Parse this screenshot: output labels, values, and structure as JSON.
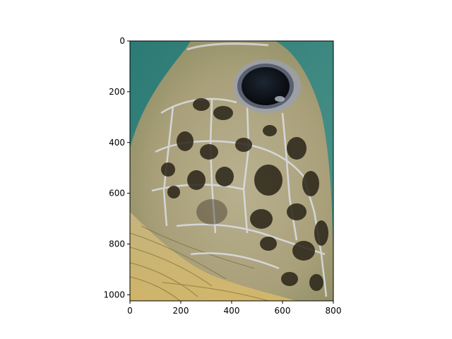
{
  "figure": {
    "subject": "sea-turtle-head-closeup",
    "x_ticks": [
      "0",
      "200",
      "400",
      "600",
      "800"
    ],
    "y_ticks": [
      "0",
      "200",
      "400",
      "600",
      "800",
      "1000"
    ],
    "x_range": [
      0,
      800
    ],
    "y_range": [
      1024,
      0
    ],
    "colors": {
      "water": "#2f7d76",
      "skin": "#c9b98a",
      "scale_dark": "#2a2418",
      "scale_edge": "#d8dbe6",
      "eye": "#101820"
    }
  }
}
